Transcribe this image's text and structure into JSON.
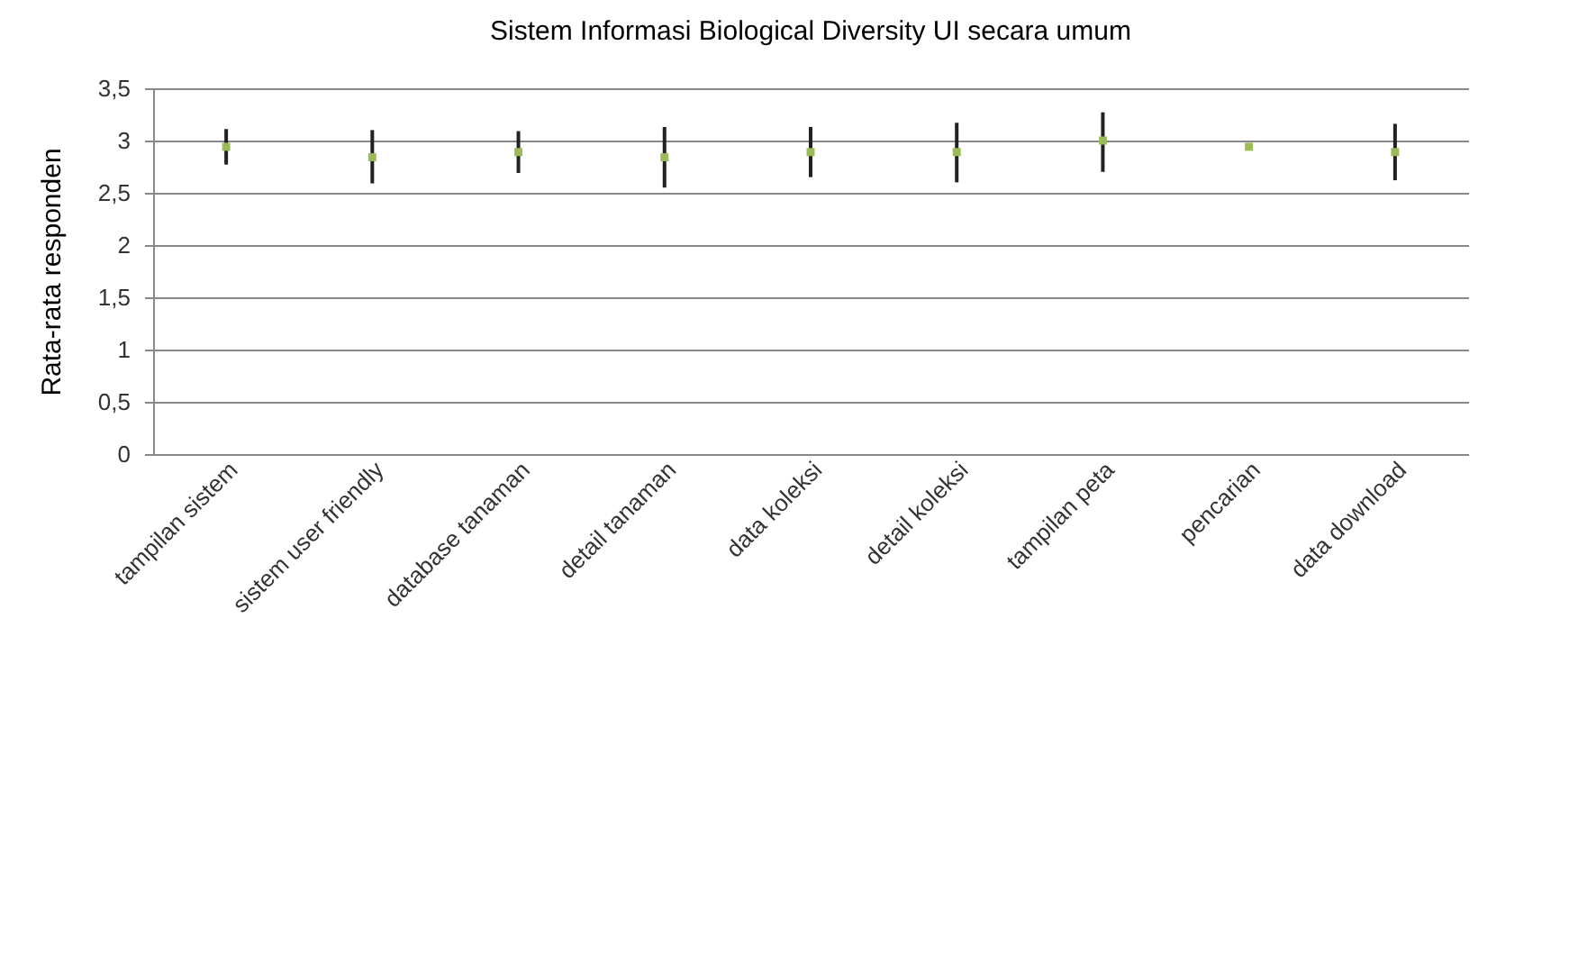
{
  "chart_data": {
    "type": "scatter",
    "title": "Sistem Informasi Biological Diversity UI secara umum",
    "ylabel": "Rata-rata responden",
    "categories": [
      "tampilan sistem",
      "sistem user friendly",
      "database tanaman",
      "detail tanaman",
      "data koleksi",
      "detail koleksi",
      "tampilan peta",
      "pencarian",
      "data download"
    ],
    "series": [
      {
        "color": "#9bbb59",
        "values": [
          2.94,
          2.84,
          2.89,
          2.84,
          2.89,
          2.89,
          3.0,
          2.94,
          2.89
        ],
        "errors": [
          [
            2.77,
            3.11
          ],
          [
            2.59,
            3.1
          ],
          [
            2.69,
            3.09
          ],
          [
            2.55,
            3.13
          ],
          [
            2.65,
            3.13
          ],
          [
            2.6,
            3.17
          ],
          [
            2.7,
            3.27
          ],
          null,
          [
            2.62,
            3.16
          ]
        ]
      }
    ],
    "ylim": [
      0,
      3.5
    ],
    "yticks": [
      0,
      {
        "value": 0.5,
        "label": "0,5"
      },
      1,
      {
        "value": 1.5,
        "label": "1,5"
      },
      2,
      {
        "value": 2.5,
        "label": "2,5"
      },
      3,
      {
        "value": 3.5,
        "label": "3,5"
      }
    ],
    "grid": "y",
    "marker": "square"
  }
}
